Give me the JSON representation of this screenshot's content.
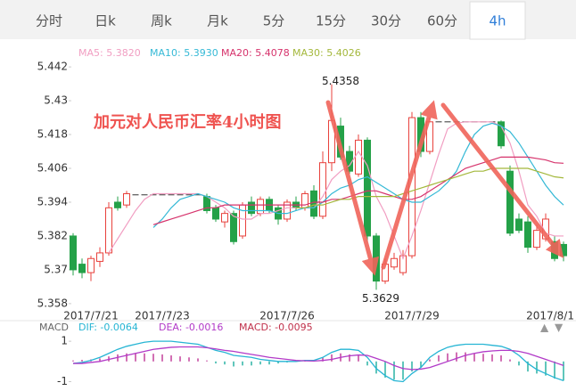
{
  "tabs": [
    "分时",
    "日k",
    "周k",
    "月k",
    "5分",
    "15分",
    "30分",
    "60分",
    "4h"
  ],
  "active_tab": 8,
  "chart_data": [
    {
      "type": "candlestick",
      "annotation": "加元对人民币汇率4小时图",
      "up_color": "#e8413c",
      "down_color": "#24a148",
      "categories": [
        null,
        null,
        "2017/7/21",
        null,
        null,
        null,
        null,
        null,
        null,
        null,
        "2017/7/23",
        null,
        null,
        null,
        null,
        null,
        null,
        null,
        null,
        null,
        null,
        null,
        null,
        null,
        "2017/7/26",
        null,
        null,
        null,
        null,
        null,
        null,
        null,
        null,
        null,
        null,
        null,
        null,
        null,
        "2017/7/29",
        null,
        null,
        null,
        null,
        null,
        null,
        null,
        null,
        null,
        null,
        null,
        null,
        null,
        null,
        "2017/8/1",
        null,
        null
      ],
      "open": [
        5.382,
        5.372,
        5.369,
        5.373,
        5.376,
        5.394,
        5.393,
        5.3966,
        5.3966,
        5.3966,
        5.3966,
        5.3966,
        5.3966,
        5.3966,
        5.3966,
        5.396,
        5.392,
        5.387,
        5.39,
        5.382,
        5.394,
        5.39,
        5.395,
        5.392,
        5.388,
        5.394,
        5.392,
        5.398,
        5.389,
        5.408,
        5.421,
        5.412,
        5.404,
        5.416,
        5.382,
        5.366,
        5.371,
        5.369,
        5.375,
        5.424,
        5.412,
        5.4225,
        5.4225,
        5.4225,
        5.4225,
        5.4225,
        5.4225,
        5.4225,
        5.4225,
        5.405,
        5.388,
        5.387,
        5.378,
        5.381,
        5.38,
        5.379
      ],
      "high": [
        5.383,
        5.374,
        5.375,
        5.378,
        5.394,
        5.396,
        5.398,
        5.3966,
        5.3966,
        5.3966,
        5.3966,
        5.3966,
        5.3966,
        5.3966,
        5.3966,
        5.397,
        5.393,
        5.391,
        5.391,
        5.394,
        5.396,
        5.396,
        5.396,
        5.393,
        5.395,
        5.396,
        5.398,
        5.4,
        5.412,
        5.4358,
        5.424,
        5.414,
        5.418,
        5.417,
        5.383,
        5.374,
        5.376,
        5.377,
        5.426,
        5.426,
        5.424,
        5.4225,
        5.4225,
        5.4225,
        5.4225,
        5.4225,
        5.4225,
        5.4225,
        5.423,
        5.407,
        5.39,
        5.389,
        5.386,
        5.39,
        5.382,
        5.38
      ],
      "low": [
        5.368,
        5.367,
        5.366,
        5.371,
        5.375,
        5.391,
        5.392,
        5.3966,
        5.3966,
        5.3966,
        5.3966,
        5.3966,
        5.3966,
        5.3966,
        5.3966,
        5.39,
        5.387,
        5.385,
        5.379,
        5.381,
        5.389,
        5.389,
        5.39,
        5.386,
        5.387,
        5.391,
        5.391,
        5.388,
        5.388,
        5.405,
        5.409,
        5.404,
        5.403,
        5.38,
        5.3629,
        5.365,
        5.37,
        5.368,
        5.374,
        5.41,
        5.411,
        5.4225,
        5.4225,
        5.4225,
        5.4225,
        5.4225,
        5.4225,
        5.4225,
        5.413,
        5.382,
        5.383,
        5.376,
        5.377,
        5.38,
        5.373,
        5.373
      ],
      "close": [
        5.37,
        5.369,
        5.374,
        5.376,
        5.392,
        5.392,
        5.397,
        5.3966,
        5.3966,
        5.3966,
        5.3966,
        5.3966,
        5.3966,
        5.3966,
        5.3966,
        5.391,
        5.388,
        5.39,
        5.38,
        5.393,
        5.39,
        5.395,
        5.391,
        5.388,
        5.394,
        5.392,
        5.397,
        5.389,
        5.408,
        5.423,
        5.41,
        5.405,
        5.416,
        5.382,
        5.366,
        5.372,
        5.374,
        5.375,
        5.424,
        5.412,
        5.4225,
        5.4225,
        5.4225,
        5.4225,
        5.4225,
        5.4225,
        5.4225,
        5.4225,
        5.414,
        5.383,
        5.384,
        5.378,
        5.384,
        5.388,
        5.374,
        5.375
      ],
      "series": [
        {
          "name": "MA5: 5.3820",
          "color": "#f19ec2",
          "values": [
            null,
            null,
            null,
            null,
            5.376,
            5.381,
            5.386,
            5.391,
            5.395,
            5.397,
            5.397,
            5.397,
            5.397,
            5.397,
            5.397,
            5.396,
            5.394,
            5.392,
            5.389,
            5.388,
            5.388,
            5.39,
            5.39,
            5.391,
            5.392,
            5.392,
            5.392,
            5.392,
            5.396,
            5.402,
            5.405,
            5.407,
            5.412,
            5.407,
            5.396,
            5.39,
            5.382,
            5.374,
            5.382,
            5.391,
            5.401,
            5.411,
            5.42,
            5.422,
            5.4225,
            5.4225,
            5.4225,
            5.4225,
            5.421,
            5.415,
            5.405,
            5.393,
            5.389,
            5.383,
            5.382,
            5.382
          ]
        },
        {
          "name": "MA10: 5.3930",
          "color": "#35b9d6",
          "values": [
            null,
            null,
            null,
            null,
            null,
            null,
            null,
            null,
            null,
            5.385,
            5.388,
            5.392,
            5.395,
            5.396,
            5.397,
            5.396,
            5.395,
            5.394,
            5.392,
            5.391,
            5.391,
            5.391,
            5.391,
            5.39,
            5.39,
            5.391,
            5.392,
            5.392,
            5.394,
            5.397,
            5.399,
            5.4,
            5.402,
            5.403,
            5.401,
            5.399,
            5.397,
            5.395,
            5.394,
            5.394,
            5.396,
            5.398,
            5.401,
            5.405,
            5.412,
            5.418,
            5.421,
            5.422,
            5.421,
            5.419,
            5.415,
            5.41,
            5.405,
            5.4,
            5.396,
            5.393
          ]
        },
        {
          "name": "MA20: 5.4078",
          "color": "#d6336c",
          "values": [
            null,
            null,
            null,
            null,
            null,
            null,
            null,
            null,
            null,
            5.386,
            5.387,
            5.388,
            5.389,
            5.39,
            5.391,
            5.392,
            5.392,
            5.393,
            5.393,
            5.393,
            5.393,
            5.393,
            5.393,
            5.393,
            5.393,
            5.393,
            5.393,
            5.394,
            5.394,
            5.395,
            5.395,
            5.396,
            5.397,
            5.398,
            5.398,
            5.397,
            5.396,
            5.395,
            5.395,
            5.396,
            5.398,
            5.4,
            5.402,
            5.404,
            5.406,
            5.407,
            5.408,
            5.409,
            5.41,
            5.41,
            5.41,
            5.41,
            5.4095,
            5.409,
            5.408,
            5.4078
          ]
        },
        {
          "name": "MA30: 5.4026",
          "color": "#a4b83c",
          "values": [
            null,
            null,
            null,
            null,
            null,
            null,
            null,
            null,
            null,
            null,
            null,
            null,
            null,
            null,
            null,
            null,
            null,
            null,
            null,
            null,
            null,
            null,
            null,
            null,
            null,
            5.392,
            5.392,
            5.393,
            5.393,
            5.394,
            5.395,
            5.395,
            5.396,
            5.396,
            5.396,
            5.396,
            5.396,
            5.397,
            5.398,
            5.399,
            5.4,
            5.401,
            5.402,
            5.403,
            5.404,
            5.405,
            5.405,
            5.406,
            5.406,
            5.406,
            5.406,
            5.406,
            5.405,
            5.404,
            5.403,
            5.4026
          ]
        }
      ],
      "ylim": [
        5.3567,
        5.4531
      ],
      "yticks": [
        5.442,
        5.43,
        5.418,
        5.406,
        5.394,
        5.382,
        5.37,
        5.358
      ]
    },
    {
      "type": "macd",
      "title": "MACD",
      "up_color": "#c2409a",
      "down_color": "#2bb3a4",
      "series": [
        {
          "name": "DIF: -0.0064",
          "color": "#26b5d4",
          "style": "line",
          "values": [
            -0.1,
            -0.05,
            0.05,
            0.2,
            0.4,
            0.6,
            0.75,
            0.85,
            0.95,
            1.0,
            1.0,
            1.0,
            0.95,
            0.9,
            0.85,
            0.7,
            0.55,
            0.45,
            0.3,
            0.25,
            0.2,
            0.1,
            0.05,
            0,
            0,
            0,
            0.05,
            0.05,
            0.2,
            0.45,
            0.6,
            0.6,
            0.55,
            0.2,
            -0.35,
            -0.7,
            -0.95,
            -1.0,
            -0.6,
            -0.3,
            0.2,
            0.5,
            0.7,
            0.8,
            0.85,
            0.85,
            0.85,
            0.8,
            0.75,
            0.6,
            0.3,
            -0.1,
            -0.4,
            -0.6,
            -0.8,
            -0.95
          ]
        },
        {
          "name": "DEA: -0.0016",
          "color": "#b23ac8",
          "style": "line",
          "values": [
            -0.1,
            -0.1,
            -0.05,
            0,
            0.1,
            0.2,
            0.3,
            0.4,
            0.5,
            0.6,
            0.65,
            0.7,
            0.72,
            0.72,
            0.72,
            0.68,
            0.62,
            0.55,
            0.5,
            0.42,
            0.35,
            0.28,
            0.2,
            0.15,
            0.1,
            0.05,
            0.03,
            0.02,
            0.05,
            0.1,
            0.2,
            0.28,
            0.32,
            0.3,
            0.15,
            0,
            -0.2,
            -0.35,
            -0.4,
            -0.38,
            -0.3,
            -0.15,
            0,
            0.15,
            0.3,
            0.4,
            0.48,
            0.52,
            0.55,
            0.55,
            0.5,
            0.4,
            0.25,
            0.1,
            -0.05,
            -0.2
          ]
        },
        {
          "name": "MACD: -0.0095",
          "color": "#c0304a",
          "style": "bar",
          "values": [
            0.05,
            0.08,
            0.1,
            0.15,
            0.25,
            0.35,
            0.4,
            0.42,
            0.4,
            0.38,
            0.35,
            0.3,
            0.25,
            0.2,
            0.15,
            0.05,
            -0.1,
            -0.15,
            -0.25,
            -0.2,
            -0.2,
            -0.15,
            -0.15,
            -0.1,
            -0.05,
            0,
            0.05,
            0.05,
            0.2,
            0.35,
            0.4,
            0.35,
            0.3,
            -0.2,
            -0.6,
            -0.8,
            -0.9,
            -0.9,
            -0.5,
            -0.3,
            0.1,
            0.3,
            0.4,
            0.45,
            0.45,
            0.4,
            0.38,
            0.35,
            0.3,
            0.1,
            -0.2,
            -0.5,
            -0.6,
            -0.7,
            -0.85,
            -0.95
          ]
        }
      ],
      "ylim": [
        -1.42,
        1.8
      ],
      "yticks": [
        1,
        -1
      ]
    }
  ]
}
